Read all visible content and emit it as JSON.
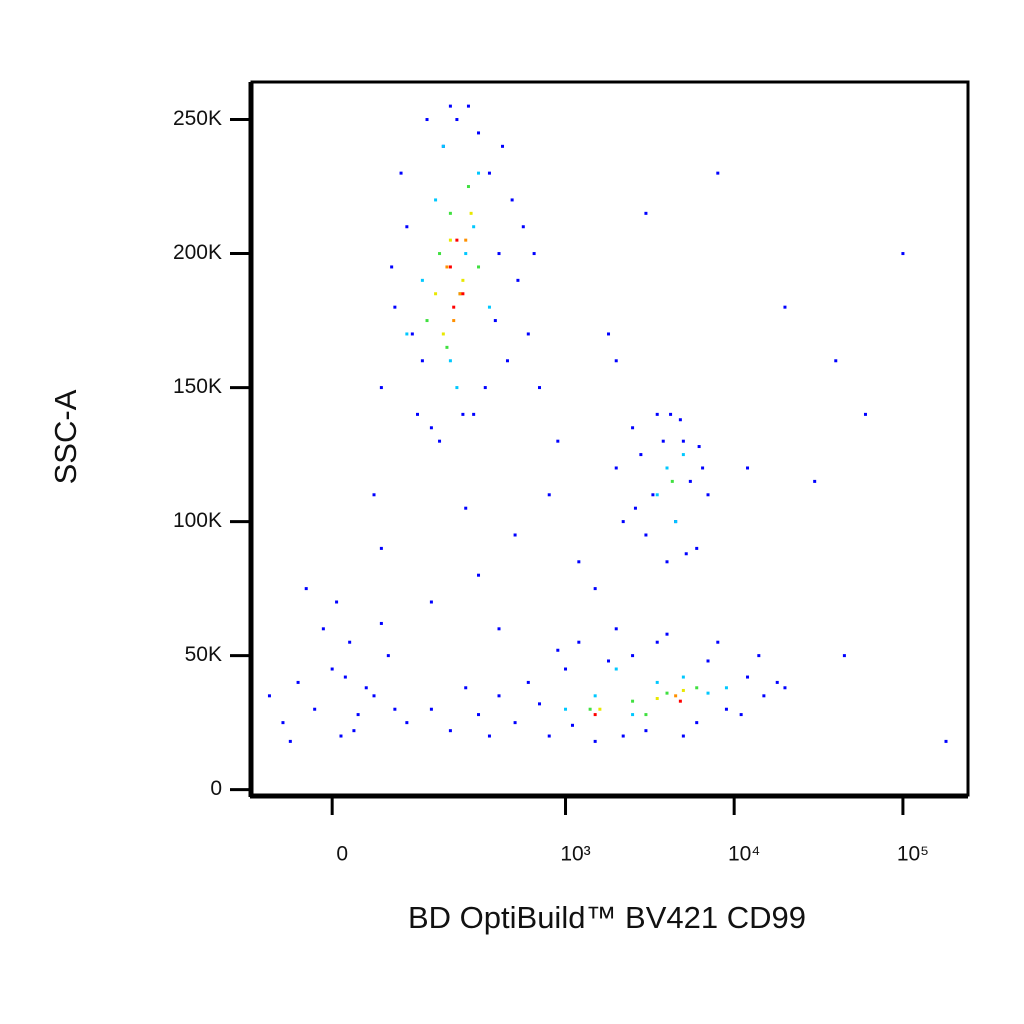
{
  "chart_data": {
    "type": "scatter",
    "x_label": "BD OptiBuild™ BV421 CD99",
    "y_label": "SSC-A",
    "xscale": "biexponential",
    "xlim": [
      -110,
      243000
    ],
    "ylim": [
      -2000,
      264000
    ],
    "xticks": [
      0,
      {
        "value": 1000,
        "label": "10³"
      },
      {
        "value": 10000,
        "label": "10⁴"
      },
      {
        "value": 100000,
        "label": "10⁵"
      }
    ],
    "yticks": [
      0,
      {
        "value": 50000,
        "label": "50K"
      },
      {
        "value": 100000,
        "label": "100K"
      },
      {
        "value": 150000,
        "label": "150K"
      },
      {
        "value": 200000,
        "label": "200K"
      },
      {
        "value": 250000,
        "label": "250K"
      }
    ],
    "series": [
      {
        "color": "#0000ff",
        "x": [
          60,
          80,
          100,
          120,
          150,
          180,
          220,
          260,
          300,
          350,
          400,
          450,
          520,
          600,
          700,
          90,
          130,
          170,
          240,
          330,
          420,
          560,
          75,
          110,
          200,
          280,
          380,
          480,
          650,
          140,
          2000,
          2500,
          3000,
          3500,
          4000,
          4500,
          5000,
          5500,
          6000,
          7000,
          2200,
          2800,
          3800,
          4200,
          6500,
          3300,
          5200,
          4800,
          2600,
          6200,
          150,
          200,
          300,
          400,
          500,
          600,
          800,
          1000,
          1200,
          1500,
          2000,
          2500,
          3000,
          4000,
          5000,
          7000,
          9000,
          12000,
          15000,
          18000,
          250,
          350,
          700,
          900,
          1100,
          1800,
          2200,
          3500,
          6000,
          8000,
          11000,
          14000,
          20000,
          -80,
          -60,
          -40,
          -20,
          0,
          10,
          20,
          30,
          40,
          60,
          80,
          100,
          -50,
          -10,
          15,
          50,
          -30,
          25,
          70,
          5,
          60,
          150,
          300,
          500,
          800,
          1200,
          1500,
          2000,
          3000,
          50,
          250,
          400,
          900,
          1800,
          8000,
          20000,
          40000,
          45000,
          100000,
          180000,
          30000,
          60000,
          12000
        ],
        "y": [
          150000,
          180000,
          210000,
          140000,
          135000,
          240000,
          250000,
          255000,
          245000,
          230000,
          200000,
          160000,
          190000,
          170000,
          150000,
          230000,
          160000,
          130000,
          140000,
          150000,
          240000,
          210000,
          195000,
          170000,
          255000,
          140000,
          175000,
          220000,
          200000,
          250000,
          120000,
          135000,
          95000,
          140000,
          85000,
          100000,
          130000,
          115000,
          90000,
          110000,
          100000,
          125000,
          130000,
          140000,
          120000,
          110000,
          88000,
          138000,
          105000,
          128000,
          30000,
          22000,
          28000,
          35000,
          25000,
          40000,
          20000,
          45000,
          55000,
          18000,
          60000,
          50000,
          22000,
          58000,
          20000,
          48000,
          30000,
          42000,
          35000,
          40000,
          38000,
          20000,
          32000,
          52000,
          24000,
          48000,
          20000,
          55000,
          25000,
          55000,
          28000,
          50000,
          38000,
          35000,
          25000,
          40000,
          30000,
          45000,
          20000,
          55000,
          28000,
          38000,
          62000,
          30000,
          25000,
          18000,
          60000,
          42000,
          35000,
          75000,
          22000,
          50000,
          70000,
          90000,
          70000,
          80000,
          95000,
          110000,
          85000,
          75000,
          160000,
          215000,
          110000,
          105000,
          60000,
          130000,
          170000,
          230000,
          180000,
          160000,
          50000,
          200000,
          18000,
          115000,
          140000,
          120000
        ]
      },
      {
        "color": "#00c8ff",
        "x": [
          100,
          130,
          160,
          200,
          250,
          300,
          350,
          180,
          220,
          280,
          3500,
          4000,
          4500,
          5000,
          1000,
          1500,
          2500,
          3500,
          5000,
          7000,
          9000,
          2000
        ],
        "y": [
          170000,
          190000,
          220000,
          160000,
          200000,
          230000,
          180000,
          240000,
          150000,
          210000,
          110000,
          120000,
          100000,
          125000,
          30000,
          35000,
          28000,
          40000,
          42000,
          36000,
          38000,
          45000
        ]
      },
      {
        "color": "#40e040",
        "x": [
          140,
          170,
          200,
          230,
          260,
          300,
          190,
          4300,
          1400,
          2500,
          4000,
          6000,
          3000
        ],
        "y": [
          175000,
          200000,
          215000,
          185000,
          225000,
          195000,
          165000,
          115000,
          30000,
          33000,
          36000,
          38000,
          28000
        ]
      },
      {
        "color": "#e8e800",
        "x": [
          160,
          200,
          240,
          270,
          180,
          1600,
          3500,
          5000
        ],
        "y": [
          185000,
          205000,
          190000,
          215000,
          170000,
          30000,
          34000,
          37000
        ]
      },
      {
        "color": "#ff9000",
        "x": [
          190,
          230,
          210,
          250,
          4500
        ],
        "y": [
          195000,
          185000,
          175000,
          205000,
          35000
        ]
      },
      {
        "color": "#ff0000",
        "x": [
          200,
          220,
          240,
          210,
          1500,
          4800
        ],
        "y": [
          195000,
          205000,
          185000,
          180000,
          28000,
          33000
        ]
      }
    ]
  }
}
